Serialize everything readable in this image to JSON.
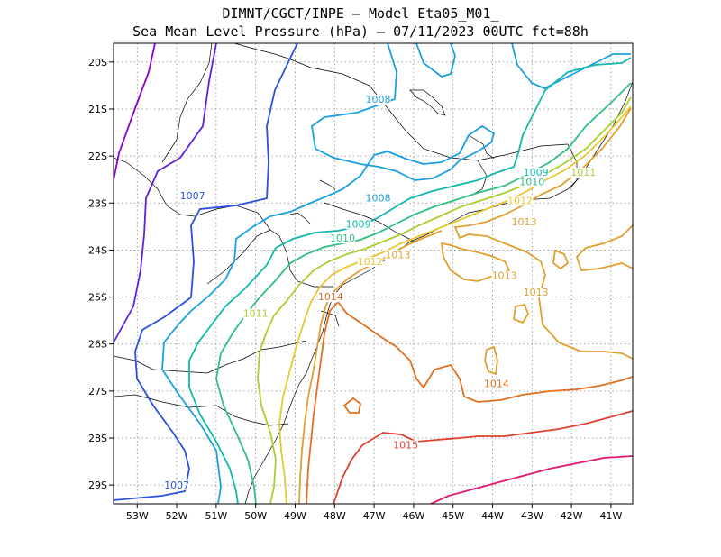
{
  "header": {
    "title_line1": "DIMNT/CGCT/INPE –  Model Eta05_M01_",
    "title_line2": "Sea Mean Level Pressure (hPa) – 07/11/2023 00UTC fct=88h"
  },
  "axes": {
    "lat_labels": [
      "20S",
      "21S",
      "22S",
      "23S",
      "24S",
      "25S",
      "26S",
      "27S",
      "28S",
      "29S"
    ],
    "lon_labels": [
      "53W",
      "52W",
      "51W",
      "50W",
      "49W",
      "48W",
      "47W",
      "46W",
      "45W",
      "44W",
      "43W",
      "42W",
      "41W"
    ]
  },
  "contour_labels": [
    {
      "text": "1008",
      "color": "#1aa0e0",
      "lon": -46.9,
      "lat": -20.85
    },
    {
      "text": "1008",
      "color": "#1aa0e0",
      "lon": -46.9,
      "lat": -22.95
    },
    {
      "text": "1007",
      "color": "#2a50e0",
      "lon": -51.6,
      "lat": -22.9
    },
    {
      "text": "1007",
      "color": "#2a50e0",
      "lon": -52.0,
      "lat": -29.05
    },
    {
      "text": "1009",
      "color": "#10b8b0",
      "lon": -47.4,
      "lat": -23.5
    },
    {
      "text": "1009",
      "color": "#10b8b0",
      "lon": -42.9,
      "lat": -22.4
    },
    {
      "text": "1010",
      "color": "#30c080",
      "lon": -47.8,
      "lat": -23.8
    },
    {
      "text": "1010",
      "color": "#30c080",
      "lon": -43.0,
      "lat": -22.6
    },
    {
      "text": "1011",
      "color": "#a8d030",
      "lon": -41.7,
      "lat": -22.4
    },
    {
      "text": "1011",
      "color": "#a8d030",
      "lon": -50.0,
      "lat": -25.4
    },
    {
      "text": "1012",
      "color": "#e8c830",
      "lon": -47.1,
      "lat": -24.3
    },
    {
      "text": "1012",
      "color": "#e8c830",
      "lon": -43.3,
      "lat": -23.0
    },
    {
      "text": "1013",
      "color": "#e0a030",
      "lon": -46.4,
      "lat": -24.15
    },
    {
      "text": "1013",
      "color": "#e0a030",
      "lon": -43.2,
      "lat": -23.45
    },
    {
      "text": "1013",
      "color": "#e0a030",
      "lon": -43.7,
      "lat": -24.6
    },
    {
      "text": "1013",
      "color": "#e0a030",
      "lon": -42.9,
      "lat": -24.95
    },
    {
      "text": "1014",
      "color": "#e07020",
      "lon": -48.1,
      "lat": -25.05
    },
    {
      "text": "1014",
      "color": "#e07020",
      "lon": -43.9,
      "lat": -26.9
    },
    {
      "text": "1015",
      "color": "#e04030",
      "lon": -46.2,
      "lat": -28.2
    }
  ],
  "contour_colors": {
    "1005": "#8a00cc",
    "1006": "#6020d8",
    "1007": "#2a50e0",
    "1008": "#1aa0e0",
    "1009": "#10b8b0",
    "1010": "#30c080",
    "1011": "#a8d030",
    "1012": "#e8c830",
    "1013": "#e0a030",
    "1014": "#e07020",
    "1015": "#e04030",
    "1016": "#e01870"
  }
}
